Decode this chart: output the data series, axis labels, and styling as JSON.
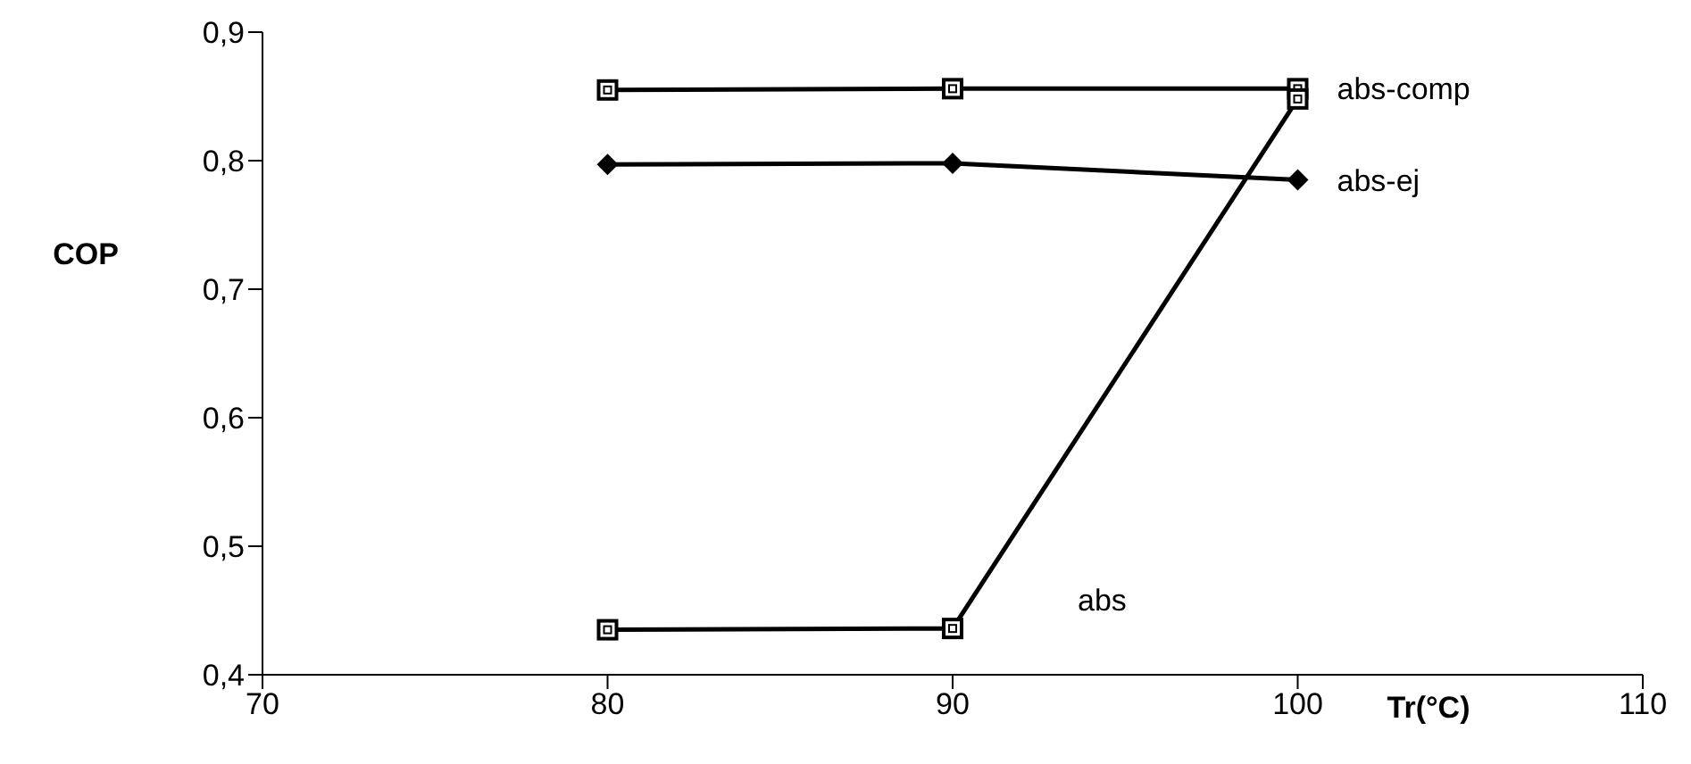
{
  "chart_data": {
    "type": "line",
    "xlabel": "Tr(°C)",
    "ylabel": "COP",
    "x": [
      80,
      90,
      100
    ],
    "series": [
      {
        "name": "abs-comp",
        "color": "#000000",
        "marker": "square",
        "values": [
          0.855,
          0.856,
          0.856
        ]
      },
      {
        "name": "abs-ej",
        "color": "#000000",
        "marker": "diamond",
        "values": [
          0.797,
          0.798,
          0.785
        ]
      },
      {
        "name": "abs",
        "color": "#000000",
        "marker": "square",
        "values": [
          0.435,
          0.436,
          0.848
        ]
      }
    ],
    "xlim": [
      70,
      110
    ],
    "xticks": [
      70,
      80,
      90,
      100,
      110
    ],
    "ylim": [
      0.4,
      0.9
    ],
    "yticks": [
      {
        "value": 0.4,
        "label": "0,4"
      },
      {
        "value": 0.5,
        "label": "0,5"
      },
      {
        "value": 0.6,
        "label": "0,6"
      },
      {
        "value": 0.7,
        "label": "0,7"
      },
      {
        "value": 0.8,
        "label": "0,8"
      },
      {
        "value": 0.9,
        "label": "0,9"
      }
    ],
    "grid": false
  }
}
